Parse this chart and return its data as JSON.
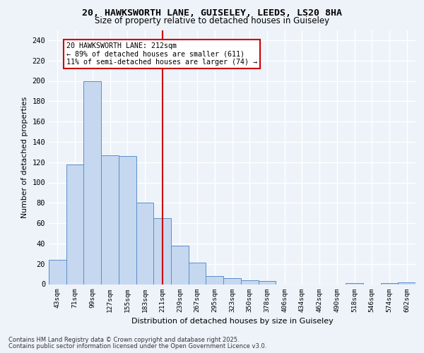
{
  "title_line1": "20, HAWKSWORTH LANE, GUISELEY, LEEDS, LS20 8HA",
  "title_line2": "Size of property relative to detached houses in Guiseley",
  "xlabel": "Distribution of detached houses by size in Guiseley",
  "ylabel": "Number of detached properties",
  "bar_color": "#c5d8f0",
  "bar_edge_color": "#5b8fc9",
  "categories": [
    "43sqm",
    "71sqm",
    "99sqm",
    "127sqm",
    "155sqm",
    "183sqm",
    "211sqm",
    "239sqm",
    "267sqm",
    "295sqm",
    "323sqm",
    "350sqm",
    "378sqm",
    "406sqm",
    "434sqm",
    "462sqm",
    "490sqm",
    "518sqm",
    "546sqm",
    "574sqm",
    "602sqm"
  ],
  "values": [
    24,
    118,
    200,
    127,
    126,
    80,
    65,
    38,
    21,
    8,
    6,
    4,
    3,
    0,
    0,
    0,
    0,
    1,
    0,
    1,
    2
  ],
  "annotation_text": "20 HAWKSWORTH LANE: 212sqm\n← 89% of detached houses are smaller (611)\n11% of semi-detached houses are larger (74) →",
  "vline_x": 6,
  "ylim": [
    0,
    250
  ],
  "yticks": [
    0,
    20,
    40,
    60,
    80,
    100,
    120,
    140,
    160,
    180,
    200,
    220,
    240
  ],
  "footer_line1": "Contains HM Land Registry data © Crown copyright and database right 2025.",
  "footer_line2": "Contains public sector information licensed under the Open Government Licence v3.0.",
  "bg_color": "#eef3fa",
  "plot_bg_color": "#eef3fa",
  "grid_color": "#ffffff",
  "annotation_box_color": "#ffffff",
  "annotation_box_edge": "#cc0000",
  "vline_color": "#cc0000"
}
